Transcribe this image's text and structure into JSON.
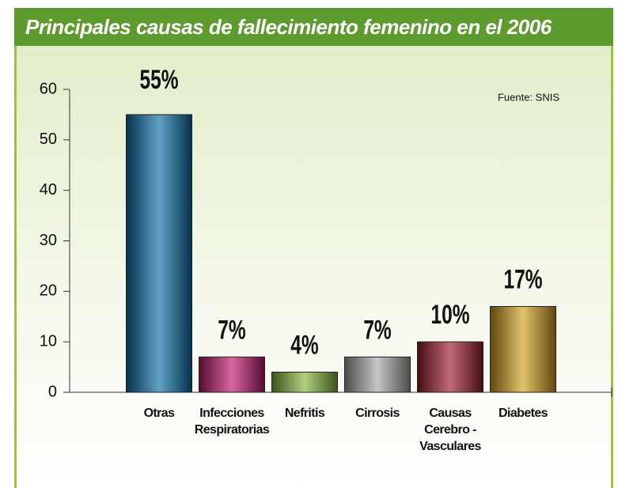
{
  "chart_data": {
    "type": "bar",
    "title": "Principales causas de fallecimiento femenino en el 2006",
    "source": "Fuente: SNIS",
    "categories": [
      "Otras",
      "Infecciones Respiratorias",
      "Nefritis",
      "Cirrosis",
      "Causas Cerebro - Vasculares",
      "Diabetes"
    ],
    "values": [
      55,
      7,
      4,
      7,
      10,
      17
    ],
    "value_labels": [
      "55%",
      "7%",
      "4%",
      "7%",
      "10%",
      "17%"
    ],
    "colors": [
      "#0a6ea8",
      "#c0166c",
      "#86b83a",
      "#a8a8a8",
      "#9e1a2a",
      "#d3a11f"
    ],
    "ylim": [
      0,
      60
    ],
    "yticks": [
      0,
      10,
      20,
      30,
      40,
      50,
      60
    ],
    "grid": false
  }
}
